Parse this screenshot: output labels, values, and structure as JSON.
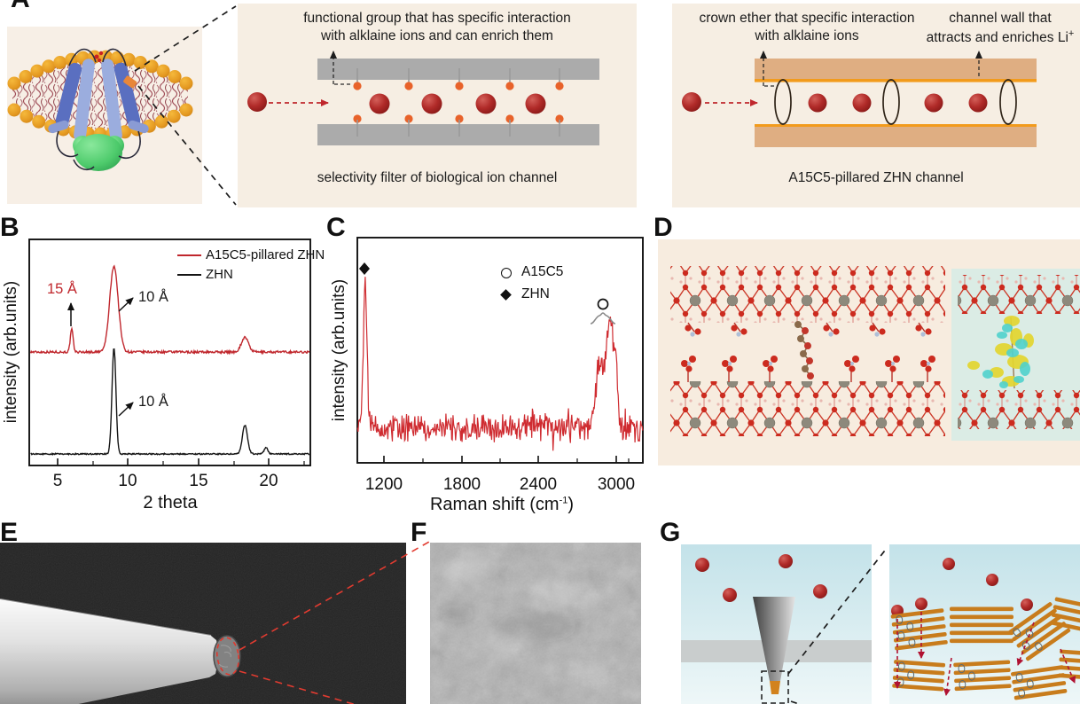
{
  "panelA": {
    "label": "A"
  },
  "bio_filter": {
    "annotation_line1": "functional group that has specific interaction",
    "annotation_line2": "with alklaine ions and can enrich them",
    "caption": "selectivity filter of biological ion channel"
  },
  "zhn_channel": {
    "crown_annotation_line1": "crown ether that specific interaction",
    "crown_annotation_line2": "with alklaine ions",
    "wall_annotation_line1": "channel wall that",
    "wall_annotation_line2": "attracts and enriches Li",
    "wall_annotation_sup": "+",
    "caption": "A15C5-pillared ZHN channel"
  },
  "xrd": {
    "label": "B",
    "ylabel": "intensity (arb.units)",
    "xlabel": "2 theta",
    "xticks": [
      "5",
      "10",
      "15",
      "20"
    ],
    "legend": [
      {
        "label": "A15C5-pillared ZHN"
      },
      {
        "label": "ZHN"
      }
    ],
    "ann_15A": "15 Å",
    "ann_10A_red": "10 Å",
    "ann_10A_black": "10 Å"
  },
  "raman": {
    "label": "C",
    "ylabel": "intensity (arb.units)",
    "xlabel_pre": "Raman shift (cm",
    "xlabel_sup": "-1",
    "xlabel_post": ")",
    "xticks": [
      "1200",
      "1800",
      "2400",
      "3000"
    ],
    "legend": [
      {
        "label": "A15C5"
      },
      {
        "label": "ZHN"
      }
    ]
  },
  "panelD": {
    "label": "D"
  },
  "panelE": {
    "label": "E"
  },
  "panelF": {
    "label": "F"
  },
  "panelG": {
    "label": "G"
  },
  "colors": {
    "trace_red": "#c0272d",
    "trace_black": "#151515",
    "cream_bg": "#f6eee3",
    "gray_wall": "#ababab",
    "orange_dot": "#e8622a",
    "tan_wall": "#dfae82",
    "tan_edge": "#f29b1c",
    "ion_red": "#a01e1c",
    "zhn_bar_orange": "#c87c1c",
    "teal_bg": "#dcece6"
  },
  "chart_data": [
    {
      "id": "panel_B_XRD",
      "type": "line",
      "xlabel": "2 theta",
      "ylabel": "intensity (arb.units)",
      "xlim": [
        3,
        23
      ],
      "xticks": [
        5,
        10,
        15,
        20
      ],
      "grid": false,
      "legend_position": "top-right",
      "series": [
        {
          "name": "A15C5-pillared ZHN",
          "color": "#c0272d",
          "offset": "upper trace",
          "peaks": [
            {
              "two_theta": 6.0,
              "d_spacing": "15 Å",
              "rel_height": 0.26,
              "width": 0.1
            },
            {
              "two_theta": 9.0,
              "d_spacing": "10 Å",
              "rel_height": 1.0,
              "width": 0.3
            },
            {
              "two_theta": 18.3,
              "rel_height": 0.17,
              "width": 0.25
            }
          ]
        },
        {
          "name": "ZHN",
          "color": "#151515",
          "offset": "lower trace",
          "peaks": [
            {
              "two_theta": 9.0,
              "d_spacing": "10 Å",
              "rel_height": 1.0,
              "width": 0.14
            },
            {
              "two_theta": 18.3,
              "rel_height": 0.27,
              "width": 0.18
            },
            {
              "two_theta": 19.8,
              "rel_height": 0.06,
              "width": 0.13
            }
          ]
        }
      ]
    },
    {
      "id": "panel_C_Raman",
      "type": "line",
      "xlabel": "Raman shift (cm-1)",
      "ylabel": "intensity (arb.units)",
      "xlim": [
        990,
        3210
      ],
      "xticks": [
        1200,
        1800,
        2400,
        3000
      ],
      "grid": false,
      "legend_position": "top-center",
      "series": [
        {
          "name": "A15C5-pillared ZHN",
          "color": "#cf2b30",
          "noise_rel": 0.08,
          "peaks": [
            {
              "shift": 1055,
              "assignment": "ZHN",
              "rel_height": 1.0,
              "width": 14
            },
            {
              "shift": 2870,
              "assignment": "A15C5",
              "rel_height": 0.42,
              "width": 30
            },
            {
              "shift": 2930,
              "assignment": "A15C5",
              "rel_height": 0.45,
              "width": 20
            },
            {
              "shift": 2965,
              "assignment": "A15C5",
              "rel_height": 0.58,
              "width": 18
            },
            {
              "shift": 3000,
              "assignment": "A15C5",
              "rel_height": 0.4,
              "width": 14
            }
          ]
        }
      ]
    }
  ]
}
